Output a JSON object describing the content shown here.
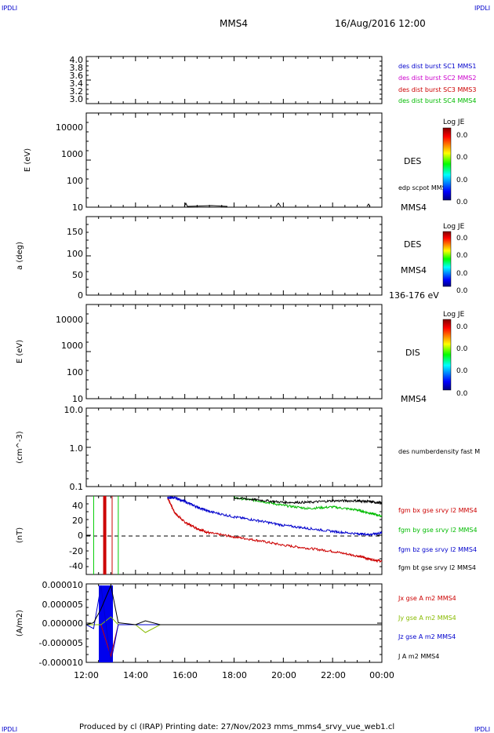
{
  "corner_labels": {
    "top_left": "IPDLI",
    "top_right": "IPDLI",
    "bottom_left": "IPDLI",
    "bottom_right": "IPDLI"
  },
  "header": {
    "spacecraft": "MMS4",
    "date": "16/Aug/2016 12:00"
  },
  "footer": "Produced by cl (IRAP)   Printing date: 27/Nov/2023   mms_mms4_srvy_vue_web1.cl",
  "x_ticks": [
    "12:00",
    "14:00",
    "16:00",
    "18:00",
    "20:00",
    "22:00",
    "00:00"
  ],
  "panels": {
    "p1": {
      "yticks": [
        "4.0",
        "3.8",
        "3.6",
        "3.4",
        "3.2",
        "3.0"
      ],
      "legend": [
        {
          "text": "des dist burst SC1 MMS1",
          "color": "#0000cc"
        },
        {
          "text": "des dist burst SC2 MMS2",
          "color": "#cc00cc"
        },
        {
          "text": "des dist burst SC3 MMS3",
          "color": "#cc0000"
        },
        {
          "text": "des dist burst SC4 MMS4",
          "color": "#00bb00"
        }
      ]
    },
    "p2": {
      "ylabel": "E (eV)",
      "yticks": [
        "10000",
        "1000",
        "100",
        "10"
      ],
      "side_label": "DES",
      "side_small": "edp scpot MMS4",
      "bottom_label": "MMS4",
      "colorbar": {
        "title": "Log JE",
        "ticks": [
          "0.0",
          "0.0",
          "0.0",
          "0.0"
        ]
      }
    },
    "p3": {
      "ylabel": "a (deg)",
      "yticks": [
        "150",
        "100",
        "50",
        "0"
      ],
      "side_label": "DES",
      "side_label2": "MMS4",
      "bottom_label": "136-176 eV",
      "colorbar": {
        "title": "Log JE",
        "ticks": [
          "0.0",
          "0.0",
          "0.0",
          "0.0"
        ]
      }
    },
    "p4": {
      "ylabel": "E (eV)",
      "yticks": [
        "10000",
        "1000",
        "100",
        "10"
      ],
      "side_label": "DIS",
      "bottom_label": "MMS4",
      "colorbar": {
        "title": "Log JE",
        "ticks": [
          "0.0",
          "0.0",
          "0.0",
          "0.0"
        ]
      }
    },
    "p5": {
      "ylabel": "(cm^-3)",
      "yticks": [
        "10.0",
        "1.0",
        "0.1"
      ],
      "side_small": "des numberdensity fast M"
    },
    "p6": {
      "ylabel": "(nT)",
      "yticks": [
        "40",
        "20",
        "0",
        "-20",
        "-40"
      ],
      "legend": [
        {
          "text": "fgm bx gse srvy l2 MMS4",
          "color": "#cc0000"
        },
        {
          "text": "fgm by gse srvy l2 MMS4",
          "color": "#00bb00"
        },
        {
          "text": "fgm bz gse srvy l2 MMS4",
          "color": "#0000cc"
        },
        {
          "text": "fgm bt gse srvy l2 MMS4",
          "color": "#000000"
        }
      ]
    },
    "p7": {
      "ylabel": "(A/m2)",
      "yticks": [
        "0.000010",
        "0.000005",
        "0.000000",
        "-0.000005",
        "-0.000010"
      ],
      "legend": [
        {
          "text": "Jx gse A m2 MMS4",
          "color": "#cc0000"
        },
        {
          "text": "Jy gse A m2 MMS4",
          "color": "#88bb00"
        },
        {
          "text": "Jz gse A m2 MMS4",
          "color": "#0000cc"
        },
        {
          "text": "J A m2 MMS4",
          "color": "#000000"
        }
      ]
    }
  },
  "chart_data": {
    "type": "line",
    "title": "MMS4 16/Aug/2016 12:00",
    "x_range": [
      "2016-08-16T12:00",
      "2016-08-17T00:00"
    ],
    "magnetic_field_nT": {
      "ylim": [
        -50,
        50
      ],
      "x_hours": [
        15.3,
        15.6,
        16.0,
        16.5,
        17.0,
        18.0,
        19.0,
        20.0,
        21.0,
        22.0,
        23.0,
        23.5,
        24.0
      ],
      "series": [
        {
          "name": "fgm bx gse srvy l2 MMS4",
          "color": "#cc0000",
          "values": [
            50,
            30,
            18,
            10,
            4,
            -1,
            -6,
            -12,
            -16,
            -20,
            -26,
            -30,
            -33
          ]
        },
        {
          "name": "fgm by gse srvy l2 MMS4",
          "color": "#00bb00",
          "values": [
            null,
            null,
            null,
            null,
            null,
            50,
            46,
            40,
            36,
            38,
            34,
            30,
            26
          ]
        },
        {
          "name": "fgm bz gse srvy l2 MMS4",
          "color": "#0000cc",
          "values": [
            50,
            50,
            45,
            38,
            32,
            25,
            20,
            14,
            10,
            6,
            3,
            2,
            4
          ]
        },
        {
          "name": "fgm bt gse srvy l2 MMS4",
          "color": "#000000",
          "values": [
            null,
            null,
            null,
            null,
            null,
            50,
            47,
            44,
            44,
            46,
            46,
            45,
            43
          ]
        }
      ],
      "vertical_markers_hours": [
        12.3,
        12.75,
        13.05,
        13.3
      ]
    },
    "current_density_Am2": {
      "ylim": [
        -1e-05,
        1e-05
      ],
      "x_hours": [
        12.0,
        12.3,
        12.6,
        13.0,
        13.3,
        14.0,
        14.4,
        15.0,
        24.0
      ],
      "series": [
        {
          "name": "Jx gse A m2 MMS4",
          "color": "#cc0000",
          "values": [
            0,
            0,
            0,
            -8e-06,
            0,
            0,
            0,
            0,
            0
          ]
        },
        {
          "name": "Jy gse A m2 MMS4",
          "color": "#88bb00",
          "values": [
            0,
            0,
            0,
            2e-06,
            0,
            0,
            -2e-06,
            0,
            0
          ]
        },
        {
          "name": "Jz gse A m2 MMS4",
          "color": "#0000cc",
          "values": [
            0,
            -1e-06,
            1e-05,
            -1e-05,
            0,
            0,
            0,
            0,
            0
          ]
        },
        {
          "name": "J A m2 MMS4",
          "color": "#000000",
          "values": [
            0,
            5e-07,
            4e-06,
            1e-05,
            5e-07,
            0,
            1e-06,
            0,
            0
          ]
        }
      ]
    }
  }
}
